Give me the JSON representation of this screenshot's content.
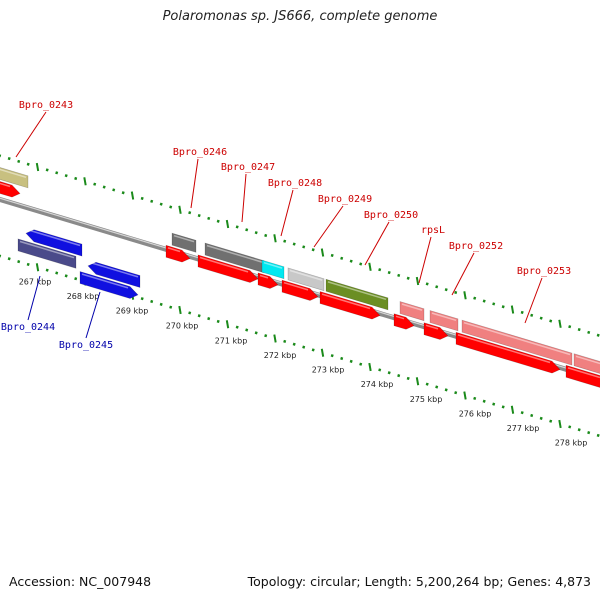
{
  "title": "Polaromonas sp. JS666, complete genome",
  "footer": {
    "accession": "Accession: NC_007948",
    "summary": "Topology: circular; Length: 5,200,264 bp; Genes: 4,873"
  },
  "colors": {
    "cds_red": "#ff0000",
    "blue": "#1010e0",
    "dark_slate": "#4a4a8a",
    "olive_khaki": "#c8c080",
    "gray": "#707070",
    "light_gray": "#c8c8c8",
    "cyan": "#00e8f0",
    "olive_green": "#6b8e23",
    "salmon": "#f08080",
    "tick_green": "#1a8a1a",
    "backbone": "#8a8a8a",
    "label_red": "#cc0000",
    "label_blue": "#0000aa"
  },
  "scale_ticks": [
    "267 kbp",
    "268 kbp",
    "269 kbp",
    "270 kbp",
    "271 kbp",
    "272 kbp",
    "273 kbp",
    "274 kbp",
    "275 kbp",
    "276 kbp",
    "277 kbp",
    "278 kbp"
  ],
  "gene_labels": [
    {
      "text": "Bpro_0243",
      "color": "label_red"
    },
    {
      "text": "Bpro_0244",
      "color": "label_blue"
    },
    {
      "text": "Bpro_0245",
      "color": "label_blue"
    },
    {
      "text": "Bpro_0246",
      "color": "label_red"
    },
    {
      "text": "Bpro_0247",
      "color": "label_red"
    },
    {
      "text": "Bpro_0248",
      "color": "label_red"
    },
    {
      "text": "Bpro_0249",
      "color": "label_red"
    },
    {
      "text": "Bpro_0250",
      "color": "label_red"
    },
    {
      "text": "rpsL",
      "color": "label_red"
    },
    {
      "text": "Bpro_0252",
      "color": "label_red"
    },
    {
      "text": "Bpro_0253",
      "color": "label_red"
    }
  ]
}
